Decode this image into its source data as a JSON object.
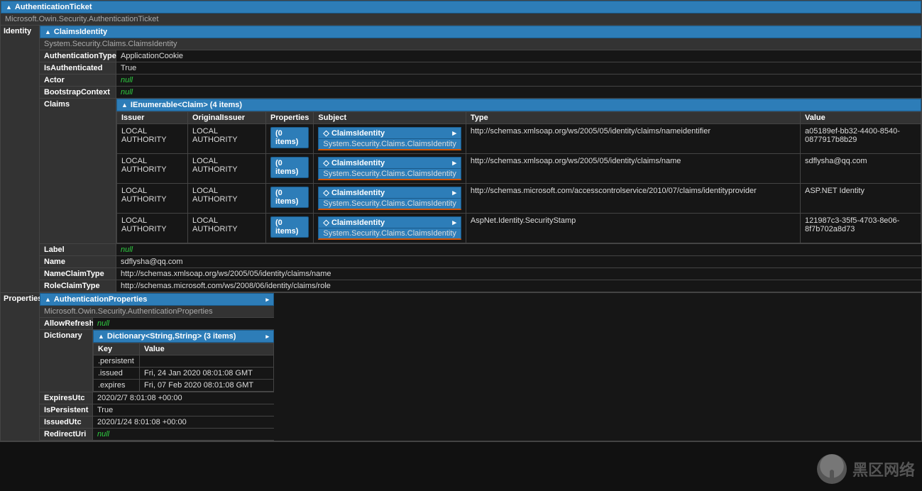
{
  "root": {
    "title": "AuthenticationTicket",
    "subtype": "Microsoft.Owin.Security.AuthenticationTicket"
  },
  "identity": {
    "rowLabel": "Identity",
    "title": "ClaimsIdentity",
    "subtype": "System.Security.Claims.ClaimsIdentity",
    "authTypeLabel": "AuthenticationType",
    "authTypeValue": "ApplicationCookie",
    "isAuthLabel": "IsAuthenticated",
    "isAuthValue": "True",
    "actorLabel": "Actor",
    "actorValue": "null",
    "bootstrapLabel": "BootstrapContext",
    "bootstrapValue": "null",
    "claimsLabel": "Claims",
    "claimsHeader": "IEnumerable<Claim> (4 items)",
    "columns": {
      "issuer": "Issuer",
      "originalIssuer": "OriginalIssuer",
      "properties": "Properties",
      "subject": "Subject",
      "type": "Type",
      "value": "Value"
    },
    "propBadge": "(0 items)",
    "subjectTitle": "ClaimsIdentity",
    "subjectSub": "System.Security.Claims.ClaimsIdentity",
    "rows": [
      {
        "issuer": "LOCAL AUTHORITY",
        "origIssuer": "LOCAL AUTHORITY",
        "type": "http://schemas.xmlsoap.org/ws/2005/05/identity/claims/nameidentifier",
        "value": "a05189ef-bb32-4400-8540-0877917b8b29"
      },
      {
        "issuer": "LOCAL AUTHORITY",
        "origIssuer": "LOCAL AUTHORITY",
        "type": "http://schemas.xmlsoap.org/ws/2005/05/identity/claims/name",
        "value": "sdflysha@qq.com"
      },
      {
        "issuer": "LOCAL AUTHORITY",
        "origIssuer": "LOCAL AUTHORITY",
        "type": "http://schemas.microsoft.com/accesscontrolservice/2010/07/claims/identityprovider",
        "value": "ASP.NET Identity"
      },
      {
        "issuer": "LOCAL AUTHORITY",
        "origIssuer": "LOCAL AUTHORITY",
        "type": "AspNet.Identity.SecurityStamp",
        "value": "121987c3-35f5-4703-8e06-8f7b702a8d73"
      }
    ],
    "labelLabel": "Label",
    "labelValue": "null",
    "nameLabel": "Name",
    "nameValue": "sdflysha@qq.com",
    "nameClaimLabel": "NameClaimType",
    "nameClaimValue": "http://schemas.xmlsoap.org/ws/2005/05/identity/claims/name",
    "roleClaimLabel": "RoleClaimType",
    "roleClaimValue": "http://schemas.microsoft.com/ws/2008/06/identity/claims/role"
  },
  "properties": {
    "rowLabel": "Properties",
    "title": "AuthenticationProperties",
    "subtype": "Microsoft.Owin.Security.AuthenticationProperties",
    "allowRefreshLabel": "AllowRefresh",
    "allowRefreshValue": "null",
    "dictLabel": "Dictionary",
    "dictHeader": "Dictionary<String,String> (3 items)",
    "dictCols": {
      "key": "Key",
      "value": "Value"
    },
    "dictRows": [
      {
        "key": ".persistent",
        "value": ""
      },
      {
        "key": ".issued",
        "value": "Fri, 24 Jan 2020 08:01:08 GMT"
      },
      {
        "key": ".expires",
        "value": "Fri, 07 Feb 2020 08:01:08 GMT"
      }
    ],
    "expiresLabel": "ExpiresUtc",
    "expiresValue": "2020/2/7 8:01:08 +00:00",
    "isPersistentLabel": "IsPersistent",
    "isPersistentValue": "True",
    "issuedLabel": "IssuedUtc",
    "issuedValue": "2020/1/24 8:01:08 +00:00",
    "redirectLabel": "RedirectUri",
    "redirectValue": "null"
  },
  "watermark": "黑区网络",
  "colors": {
    "headerBg": "#2d7db8",
    "panelBg": "#161616",
    "labelBg": "#333333",
    "nullColor": "#2ecc40",
    "orangeUnderline": "#d35400"
  }
}
